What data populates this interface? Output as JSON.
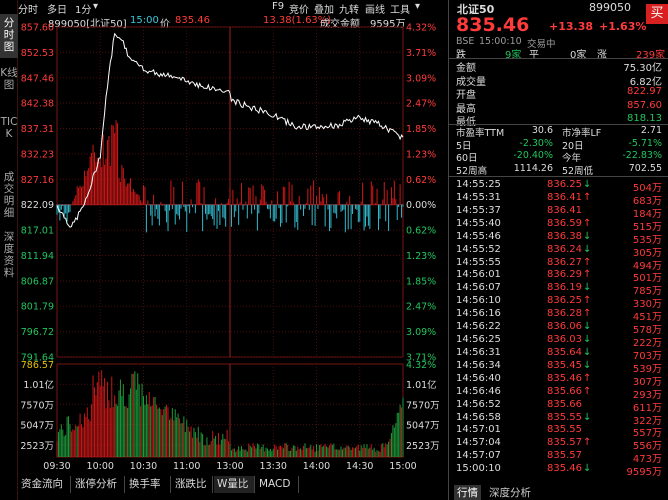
{
  "sidenav": [
    "分时图",
    "K线图",
    "TICK",
    "成交明细",
    "深度资料"
  ],
  "topbar": {
    "items": [
      "分时",
      "多日",
      "1分",
      "▾",
      "F9",
      "竞价",
      "叠加",
      "九转",
      "画线",
      "工具",
      "▾"
    ]
  },
  "infobar": {
    "code_name": "899050[北证50]",
    "time": "15:00",
    "price_label": "价",
    "price": "835.46",
    "change": "13.38(1.63%)",
    "vol_label": "成交金额",
    "vol": "9595万"
  },
  "chart_data": {
    "type": "line",
    "title": "",
    "xlabel": "",
    "ylabel": "",
    "price_ticks": [
      "857.60",
      "852.53",
      "847.46",
      "842.38",
      "837.31",
      "832.23",
      "827.16",
      "822.09",
      "817.01",
      "811.94",
      "806.87",
      "801.79",
      "796.72",
      "791.64"
    ],
    "pct_ticks": [
      "4.32%",
      "3.71%",
      "3.09%",
      "2.47%",
      "1.85%",
      "1.23%",
      "0.62%",
      "0.00%",
      "0.62%",
      "1.23%",
      "1.85%",
      "2.47%",
      "3.09%",
      "3.71%"
    ],
    "ylim": [
      791.64,
      857.6
    ],
    "prev_close": 822.09,
    "price_x": [
      "09:30",
      "09:40",
      "09:50",
      "10:00",
      "10:05",
      "10:10",
      "10:15",
      "10:20",
      "10:30",
      "10:45",
      "11:00",
      "11:15",
      "11:30",
      "13:00",
      "13:15",
      "13:30",
      "13:45",
      "14:00",
      "14:15",
      "14:30",
      "14:45",
      "15:00"
    ],
    "price": [
      822.0,
      817.5,
      822.8,
      832.0,
      846.0,
      856.5,
      855.0,
      851.5,
      849.0,
      848.0,
      846.8,
      845.5,
      844.5,
      843.0,
      841.5,
      840.0,
      837.8,
      837.5,
      838.0,
      839.5,
      838.0,
      835.46
    ],
    "vol_ticks": [
      "786.57",
      "1.01亿",
      "7570万",
      "5047万",
      "2523万"
    ],
    "vol_pct_ticks": [
      "4.32%",
      "1.01亿",
      "7570万",
      "5047万",
      "2523万"
    ],
    "x_ticks": [
      "09:30",
      "10:00",
      "10:30",
      "11:00",
      "11:30/13:00",
      "13:30",
      "14:00",
      "14:30",
      "15:00"
    ]
  },
  "bottom_tabs": [
    "资金流向",
    "涨停分析",
    "换手率",
    "涨跌比",
    "W量比",
    "MACD"
  ],
  "quote": {
    "name": "北证50",
    "code": "899050",
    "buy_label": "买",
    "price": "835.46",
    "change": "+13.38",
    "pct": "+1.63%",
    "market": "BSE",
    "time": "15:00:10",
    "status": "交易中",
    "breadth": {
      "up_label": "跌",
      "up_count": "9家",
      "flat_label": "平",
      "flat_count": "0家",
      "down_label": "涨",
      "down_count": "239家"
    },
    "fields": [
      [
        "金额",
        "75.30亿",
        "wht"
      ],
      [
        "成交量",
        "6.82亿",
        "wht"
      ],
      [
        "开盘",
        "822.97",
        "red"
      ],
      [
        "最高",
        "857.60",
        "red"
      ],
      [
        "最低",
        "818.13",
        "grn"
      ]
    ],
    "ratios": [
      [
        "市盈率TTM",
        "30.6",
        "市净率LF",
        "2.71"
      ],
      [
        "5日",
        "-2.30%",
        "20日",
        "-5.71%"
      ],
      [
        "60日",
        "-20.40%",
        "今年",
        "-22.83%"
      ],
      [
        "52周高",
        "1114.26",
        "52周低",
        "702.55"
      ]
    ]
  },
  "ticks": [
    [
      "14:55:25",
      "836.25",
      "↓",
      "504万"
    ],
    [
      "14:55:31",
      "836.41",
      "↑",
      "683万"
    ],
    [
      "14:55:37",
      "836.41",
      "",
      "184万"
    ],
    [
      "14:55:40",
      "836.59",
      "↑",
      "515万"
    ],
    [
      "14:55:46",
      "836.38",
      "↓",
      "535万"
    ],
    [
      "14:55:52",
      "836.24",
      "↓",
      "305万"
    ],
    [
      "14:55:55",
      "836.27",
      "↑",
      "494万"
    ],
    [
      "14:56:01",
      "836.29",
      "↑",
      "501万"
    ],
    [
      "14:56:07",
      "836.19",
      "↓",
      "785万"
    ],
    [
      "14:56:10",
      "836.25",
      "↑",
      "330万"
    ],
    [
      "14:56:16",
      "836.28",
      "↑",
      "451万"
    ],
    [
      "14:56:22",
      "836.06",
      "↓",
      "578万"
    ],
    [
      "14:56:25",
      "836.03",
      "↓",
      "222万"
    ],
    [
      "14:56:31",
      "835.64",
      "↓",
      "703万"
    ],
    [
      "14:56:34",
      "835.45",
      "↓",
      "539万"
    ],
    [
      "14:56:40",
      "835.46",
      "↑",
      "307万"
    ],
    [
      "14:56:46",
      "835.66",
      "↑",
      "293万"
    ],
    [
      "14:56:52",
      "835.66",
      "",
      "611万"
    ],
    [
      "14:56:58",
      "835.55",
      "↓",
      "322万"
    ],
    [
      "14:57:01",
      "835.55",
      "",
      "557万"
    ],
    [
      "14:57:04",
      "835.57",
      "↑",
      "556万"
    ],
    [
      "14:57:07",
      "835.57",
      "",
      "473万"
    ],
    [
      "15:00:10",
      "835.46",
      "↓",
      "9595万"
    ]
  ],
  "right_tabs": [
    "行情",
    "深度分析"
  ]
}
